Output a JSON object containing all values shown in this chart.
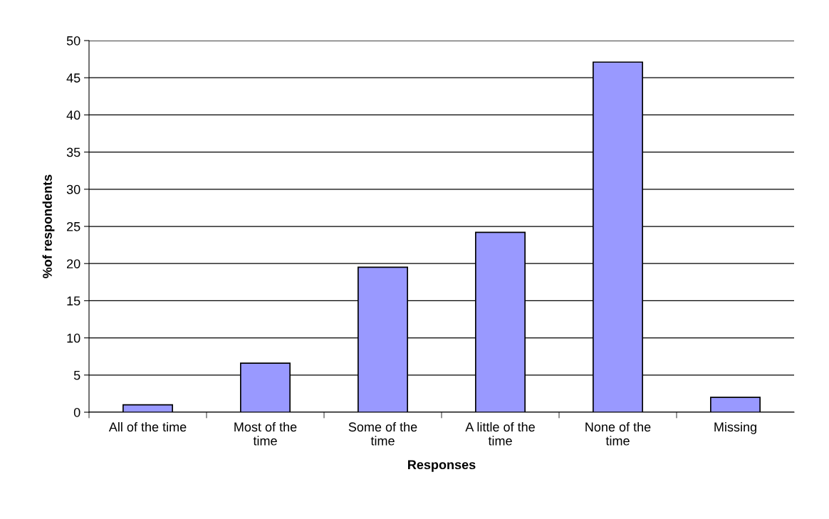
{
  "chart_data": {
    "type": "bar",
    "xlabel": "Responses",
    "ylabel": "%of respondents",
    "categories": [
      "All of the time",
      "Most of the\ntime",
      "Some of the\ntime",
      "A little of the\ntime",
      "None of the\ntime",
      "Missing"
    ],
    "values": [
      1.0,
      6.6,
      19.5,
      24.2,
      47.1,
      2.0
    ],
    "color": "#9999ff",
    "ylim": [
      0,
      50
    ],
    "yticks": [
      0,
      5,
      10,
      15,
      20,
      25,
      30,
      35,
      40,
      45,
      50
    ],
    "grid": "y"
  }
}
